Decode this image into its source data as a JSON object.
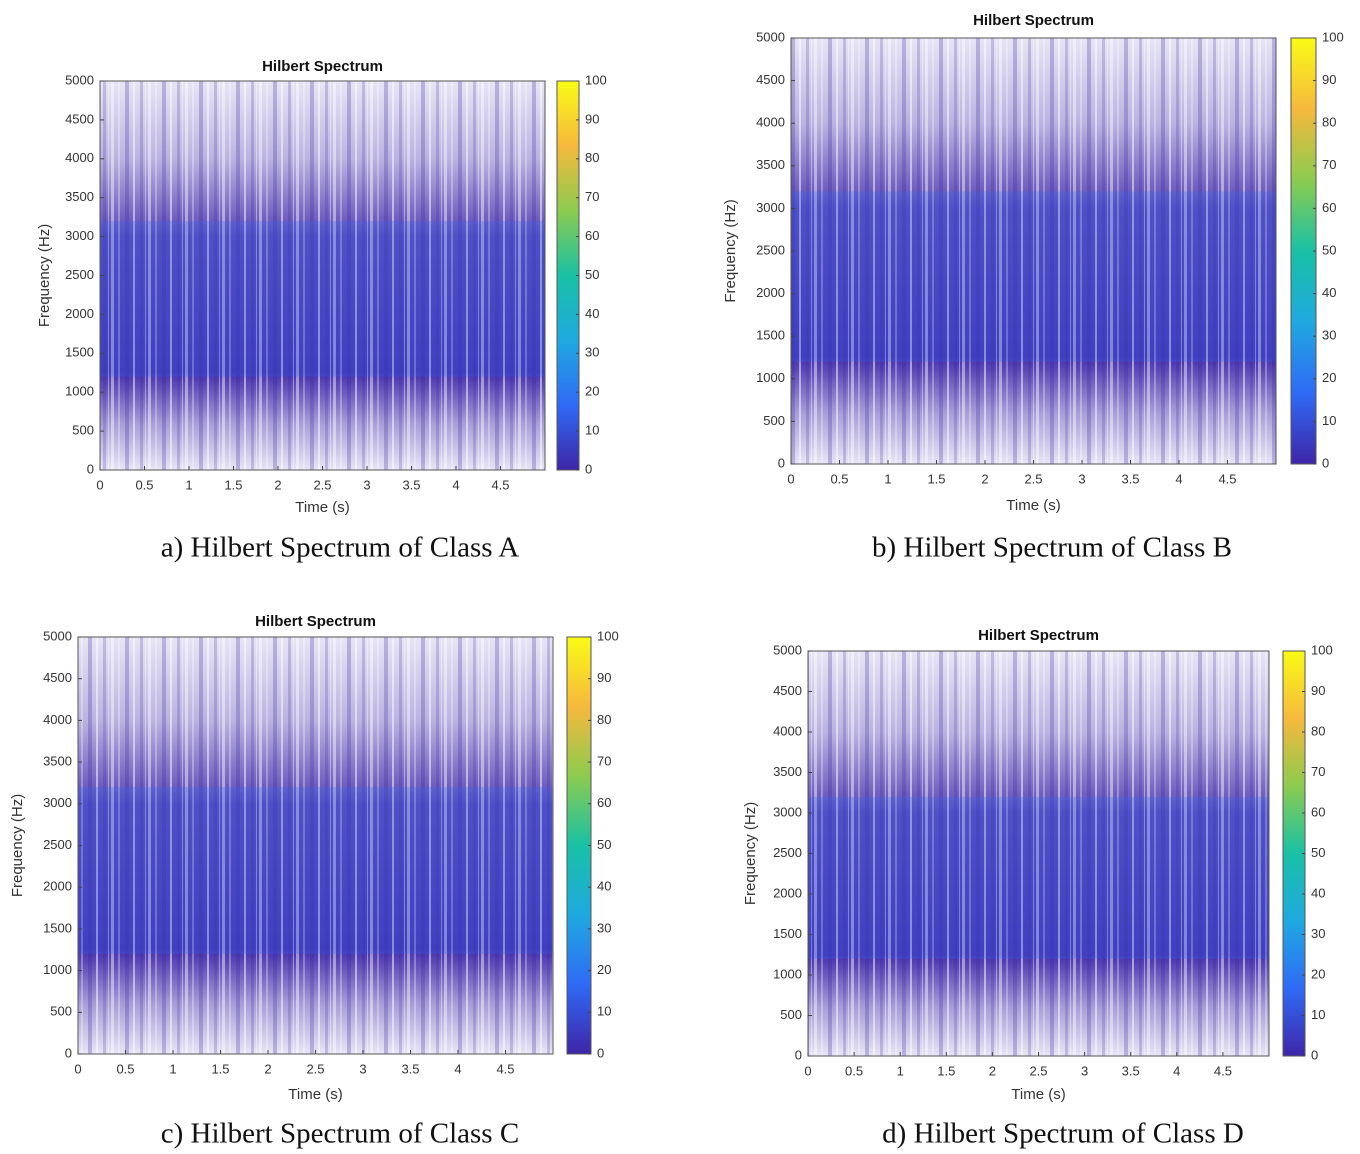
{
  "chart_data": [
    {
      "type": "heatmap",
      "title": "Hilbert Spectrum",
      "xlabel": "Time (s)",
      "ylabel": "Frequency (Hz)",
      "xlim": [
        0,
        5
      ],
      "xticks": [
        0,
        0.5,
        1,
        1.5,
        2,
        2.5,
        3,
        3.5,
        4,
        4.5
      ],
      "ylim": [
        0,
        5000
      ],
      "yticks": [
        0,
        500,
        1000,
        1500,
        2000,
        2500,
        3000,
        3500,
        4000,
        4500,
        5000
      ],
      "clim": [
        0,
        100
      ],
      "cticks": [
        0,
        10,
        20,
        30,
        40,
        50,
        60,
        70,
        80,
        90,
        100
      ],
      "colormap": [
        "#3e26a8",
        "#2f6af6",
        "#1fa9e0",
        "#19c1a5",
        "#8ccb4f",
        "#f6b93d",
        "#f9fb15"
      ],
      "caption": "a) Hilbert Spectrum of Class A"
    },
    {
      "type": "heatmap",
      "title": "Hilbert Spectrum",
      "xlabel": "Time (s)",
      "ylabel": "Frequency (Hz)",
      "xlim": [
        0,
        5
      ],
      "xticks": [
        0,
        0.5,
        1,
        1.5,
        2,
        2.5,
        3,
        3.5,
        4,
        4.5
      ],
      "ylim": [
        0,
        5000
      ],
      "yticks": [
        0,
        500,
        1000,
        1500,
        2000,
        2500,
        3000,
        3500,
        4000,
        4500,
        5000
      ],
      "clim": [
        0,
        100
      ],
      "cticks": [
        0,
        10,
        20,
        30,
        40,
        50,
        60,
        70,
        80,
        90,
        100
      ],
      "colormap": [
        "#3e26a8",
        "#2f6af6",
        "#1fa9e0",
        "#19c1a5",
        "#8ccb4f",
        "#f6b93d",
        "#f9fb15"
      ],
      "caption": "b) Hilbert Spectrum of Class B"
    },
    {
      "type": "heatmap",
      "title": "Hilbert Spectrum",
      "xlabel": "Time (s)",
      "ylabel": "Frequency (Hz)",
      "xlim": [
        0,
        5
      ],
      "xticks": [
        0,
        0.5,
        1,
        1.5,
        2,
        2.5,
        3,
        3.5,
        4,
        4.5
      ],
      "ylim": [
        0,
        5000
      ],
      "yticks": [
        0,
        500,
        1000,
        1500,
        2000,
        2500,
        3000,
        3500,
        4000,
        4500,
        5000
      ],
      "clim": [
        0,
        100
      ],
      "cticks": [
        0,
        10,
        20,
        30,
        40,
        50,
        60,
        70,
        80,
        90,
        100
      ],
      "colormap": [
        "#3e26a8",
        "#2f6af6",
        "#1fa9e0",
        "#19c1a5",
        "#8ccb4f",
        "#f6b93d",
        "#f9fb15"
      ],
      "caption": "c) Hilbert Spectrum of Class C"
    },
    {
      "type": "heatmap",
      "title": "Hilbert Spectrum",
      "xlabel": "Time (s)",
      "ylabel": "Frequency (Hz)",
      "xlim": [
        0,
        5
      ],
      "xticks": [
        0,
        0.5,
        1,
        1.5,
        2,
        2.5,
        3,
        3.5,
        4,
        4.5
      ],
      "ylim": [
        0,
        5000
      ],
      "yticks": [
        0,
        500,
        1000,
        1500,
        2000,
        2500,
        3000,
        3500,
        4000,
        4500,
        5000
      ],
      "clim": [
        0,
        100
      ],
      "cticks": [
        0,
        10,
        20,
        30,
        40,
        50,
        60,
        70,
        80,
        90,
        100
      ],
      "colormap": [
        "#3e26a8",
        "#2f6af6",
        "#1fa9e0",
        "#19c1a5",
        "#8ccb4f",
        "#f6b93d",
        "#f9fb15"
      ],
      "caption": "d) Hilbert Spectrum of Class D"
    }
  ]
}
